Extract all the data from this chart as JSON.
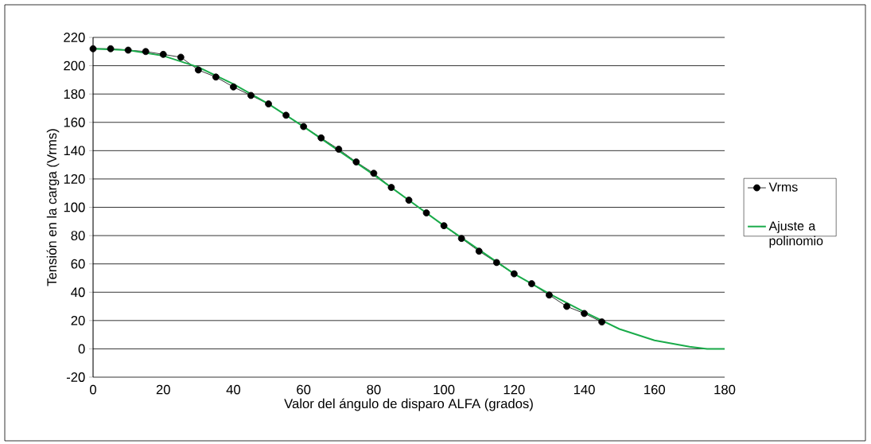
{
  "chart_data": {
    "type": "line",
    "xlabel": "Valor del ángulo de disparo ALFA (grados)",
    "ylabel": "Tensión en la carga (Vrms)",
    "xlim": [
      0,
      180
    ],
    "xticks": [
      0,
      20,
      40,
      60,
      80,
      100,
      120,
      140,
      160,
      180
    ],
    "ylim": [
      -20,
      220
    ],
    "yticks": [
      -20,
      0,
      20,
      40,
      60,
      80,
      100,
      120,
      140,
      160,
      180,
      200,
      220
    ],
    "grid": "y",
    "legend": "right",
    "series": [
      {
        "name": "Vrms",
        "color": "#000000",
        "marker": "circle",
        "x": [
          0,
          5,
          10,
          15,
          20,
          25,
          30,
          35,
          40,
          45,
          50,
          55,
          60,
          65,
          70,
          75,
          80,
          85,
          90,
          95,
          100,
          105,
          110,
          115,
          120,
          125,
          130,
          135,
          140,
          145
        ],
        "values": [
          212,
          212,
          211,
          210,
          208,
          206,
          197,
          192,
          185,
          179,
          173,
          165,
          157,
          149,
          141,
          132,
          124,
          114,
          105,
          96,
          87,
          78,
          69,
          61,
          53,
          46,
          38,
          30,
          25,
          19
        ]
      },
      {
        "name": "Ajuste a polinomio",
        "color": "#1aab4a",
        "marker": "none",
        "x": [
          0,
          10,
          20,
          30,
          40,
          50,
          60,
          70,
          80,
          90,
          100,
          110,
          120,
          130,
          140,
          150,
          160,
          170,
          175,
          180
        ],
        "values": [
          212,
          211,
          207,
          199,
          187,
          173,
          157,
          140,
          123,
          105,
          87,
          70,
          53,
          39,
          26,
          14,
          6,
          1.5,
          0,
          0
        ]
      }
    ]
  }
}
